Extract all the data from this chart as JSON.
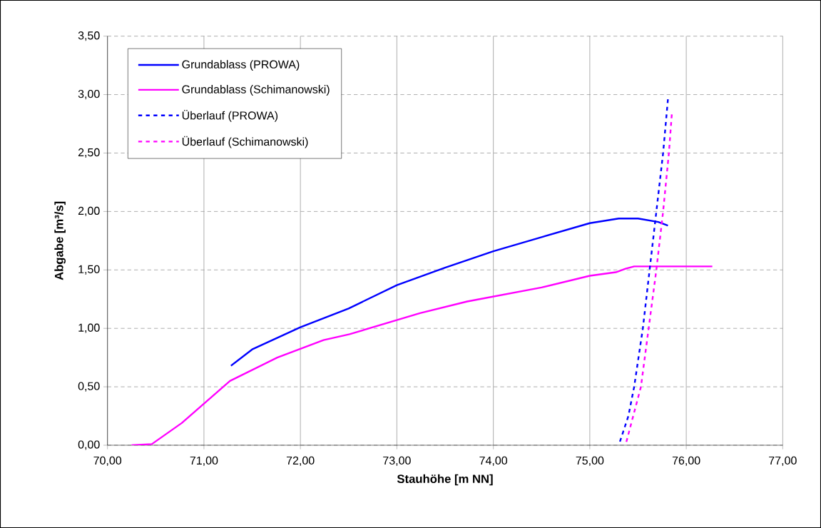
{
  "chart_data": {
    "type": "line",
    "xlabel": "Stauhöhe [m NN]",
    "ylabel": "Abgabe [m³/s]",
    "xlim": [
      70,
      77
    ],
    "ylim": [
      0,
      3.5
    ],
    "xticks": [
      {
        "value": 70,
        "label": "70,00"
      },
      {
        "value": 71,
        "label": "71,00"
      },
      {
        "value": 72,
        "label": "72,00"
      },
      {
        "value": 73,
        "label": "73,00"
      },
      {
        "value": 74,
        "label": "74,00"
      },
      {
        "value": 75,
        "label": "75,00"
      },
      {
        "value": 76,
        "label": "76,00"
      },
      {
        "value": 77,
        "label": "77,00"
      }
    ],
    "yticks": [
      {
        "value": 0,
        "label": "0,00"
      },
      {
        "value": 0.5,
        "label": "0,50"
      },
      {
        "value": 1,
        "label": "1,00"
      },
      {
        "value": 1.5,
        "label": "1,50"
      },
      {
        "value": 2,
        "label": "2,00"
      },
      {
        "value": 2.5,
        "label": "2,50"
      },
      {
        "value": 3,
        "label": "3,00"
      },
      {
        "value": 3.5,
        "label": "3,50"
      }
    ],
    "grid": true,
    "legend": "top left",
    "marker": "none",
    "series": [
      {
        "name": "Grundablass (PROWA)",
        "color": "#0000ff",
        "line_style": "solid",
        "x": [
          71.28,
          71.5,
          72.0,
          72.5,
          73.0,
          73.5,
          74.0,
          74.5,
          75.0,
          75.3,
          75.5,
          75.71,
          75.81
        ],
        "values": [
          0.68,
          0.82,
          1.01,
          1.17,
          1.37,
          1.52,
          1.66,
          1.78,
          1.9,
          1.94,
          1.94,
          1.91,
          1.88
        ]
      },
      {
        "name": "Grundablass (Schimanowski)",
        "color": "#ff00ff",
        "line_style": "solid",
        "x": [
          70.25,
          70.46,
          70.77,
          71.27,
          71.76,
          72.24,
          72.51,
          73.24,
          73.73,
          74.5,
          75.0,
          75.27,
          75.37,
          75.46,
          75.66,
          76.27
        ],
        "values": [
          0.0,
          0.01,
          0.19,
          0.55,
          0.75,
          0.9,
          0.95,
          1.13,
          1.23,
          1.35,
          1.45,
          1.48,
          1.51,
          1.53,
          1.53,
          1.53
        ]
      },
      {
        "name": "Überlauf (PROWA)",
        "color": "#0000ff",
        "line_style": "dashed",
        "x": [
          75.3,
          75.4,
          75.46,
          75.55,
          75.62,
          75.69,
          75.76,
          75.81
        ],
        "values": [
          0.0,
          0.25,
          0.5,
          1.0,
          1.5,
          2.0,
          2.5,
          2.96
        ]
      },
      {
        "name": "Überlauf (Schimanowski)",
        "color": "#ff00ff",
        "line_style": "dashed",
        "x": [
          75.37,
          75.53,
          75.61,
          75.69,
          75.76,
          75.82,
          75.85
        ],
        "values": [
          0.0,
          0.5,
          1.0,
          1.5,
          2.0,
          2.5,
          2.83
        ]
      }
    ]
  }
}
